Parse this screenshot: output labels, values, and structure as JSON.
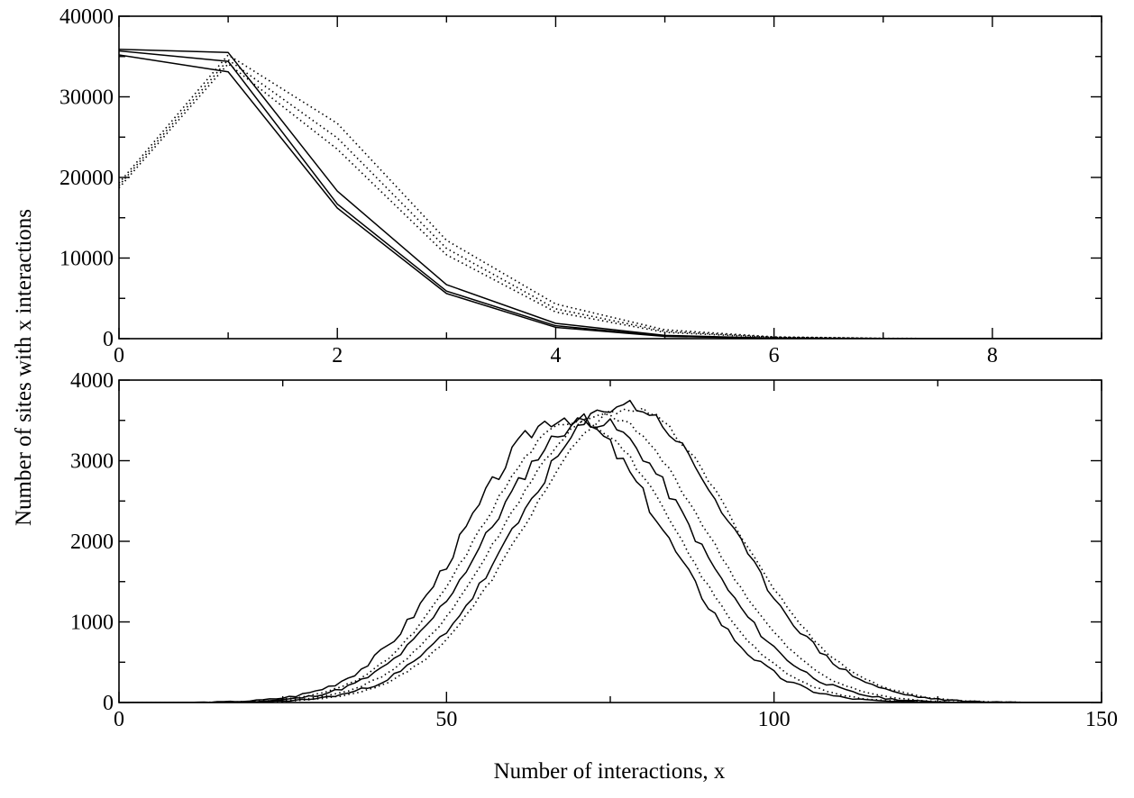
{
  "figure": {
    "ylabel": "Number of sites with x interactions",
    "xlabel": "Number of interactions, x"
  },
  "colors": {
    "line": "#000000",
    "background": "#ffffff"
  },
  "chart_data": [
    {
      "type": "line",
      "title": "",
      "xlabel": "",
      "ylabel": "",
      "xlim": [
        0,
        9
      ],
      "ylim": [
        0,
        40000
      ],
      "grid": false,
      "xticks": [
        0,
        2,
        4,
        6,
        8
      ],
      "yticks": [
        0,
        10000,
        20000,
        30000,
        40000
      ],
      "xtick_labels": [
        "0",
        "2",
        "4",
        "6",
        "8"
      ],
      "ytick_labels": [
        "0",
        "10000",
        "20000",
        "30000",
        "40000"
      ],
      "x": [
        0,
        1,
        2,
        3,
        4,
        5,
        6,
        7,
        8,
        9
      ],
      "series": [
        {
          "style": "solid",
          "values": [
            35900,
            35500,
            18300,
            6700,
            1900,
            400,
            60,
            10,
            0,
            0
          ]
        },
        {
          "style": "solid",
          "values": [
            35700,
            34400,
            16700,
            5900,
            1600,
            320,
            50,
            8,
            0,
            0
          ]
        },
        {
          "style": "solid",
          "values": [
            35200,
            33100,
            16200,
            5600,
            1400,
            280,
            40,
            6,
            0,
            0
          ]
        },
        {
          "style": "dotted",
          "values": [
            19300,
            35200,
            26700,
            12200,
            4300,
            1100,
            220,
            40,
            5,
            0
          ]
        },
        {
          "style": "dotted",
          "values": [
            19000,
            34600,
            24900,
            11200,
            3700,
            900,
            180,
            30,
            4,
            0
          ]
        },
        {
          "style": "dotted",
          "values": [
            18700,
            34100,
            23500,
            10400,
            3300,
            780,
            150,
            25,
            3,
            0
          ]
        }
      ]
    },
    {
      "type": "line",
      "title": "",
      "xlabel": "",
      "ylabel": "",
      "xlim": [
        0,
        150
      ],
      "ylim": [
        0,
        4000
      ],
      "grid": false,
      "xticks": [
        0,
        50,
        100,
        150
      ],
      "yticks": [
        0,
        1000,
        2000,
        3000,
        4000
      ],
      "xtick_labels": [
        "0",
        "50",
        "100",
        "150"
      ],
      "ytick_labels": [
        "0",
        "1000",
        "2000",
        "3000",
        "4000"
      ],
      "series": [
        {
          "style": "solid",
          "mean": 68,
          "sd": 15,
          "peak": 3550,
          "noise": 110,
          "seed": 3
        },
        {
          "style": "solid",
          "mean": 72,
          "sd": 15.5,
          "peak": 3500,
          "noise": 90,
          "seed": 11
        },
        {
          "style": "solid",
          "mean": 77,
          "sd": 16,
          "peak": 3700,
          "noise": 90,
          "seed": 23
        },
        {
          "style": "dotted",
          "mean": 70,
          "sd": 15,
          "peak": 3500,
          "noise": 40,
          "seed": 31
        },
        {
          "style": "dotted",
          "mean": 74,
          "sd": 15.5,
          "peak": 3550,
          "noise": 40,
          "seed": 41
        },
        {
          "style": "dotted",
          "mean": 78,
          "sd": 16,
          "peak": 3650,
          "noise": 40,
          "seed": 53
        }
      ]
    }
  ]
}
